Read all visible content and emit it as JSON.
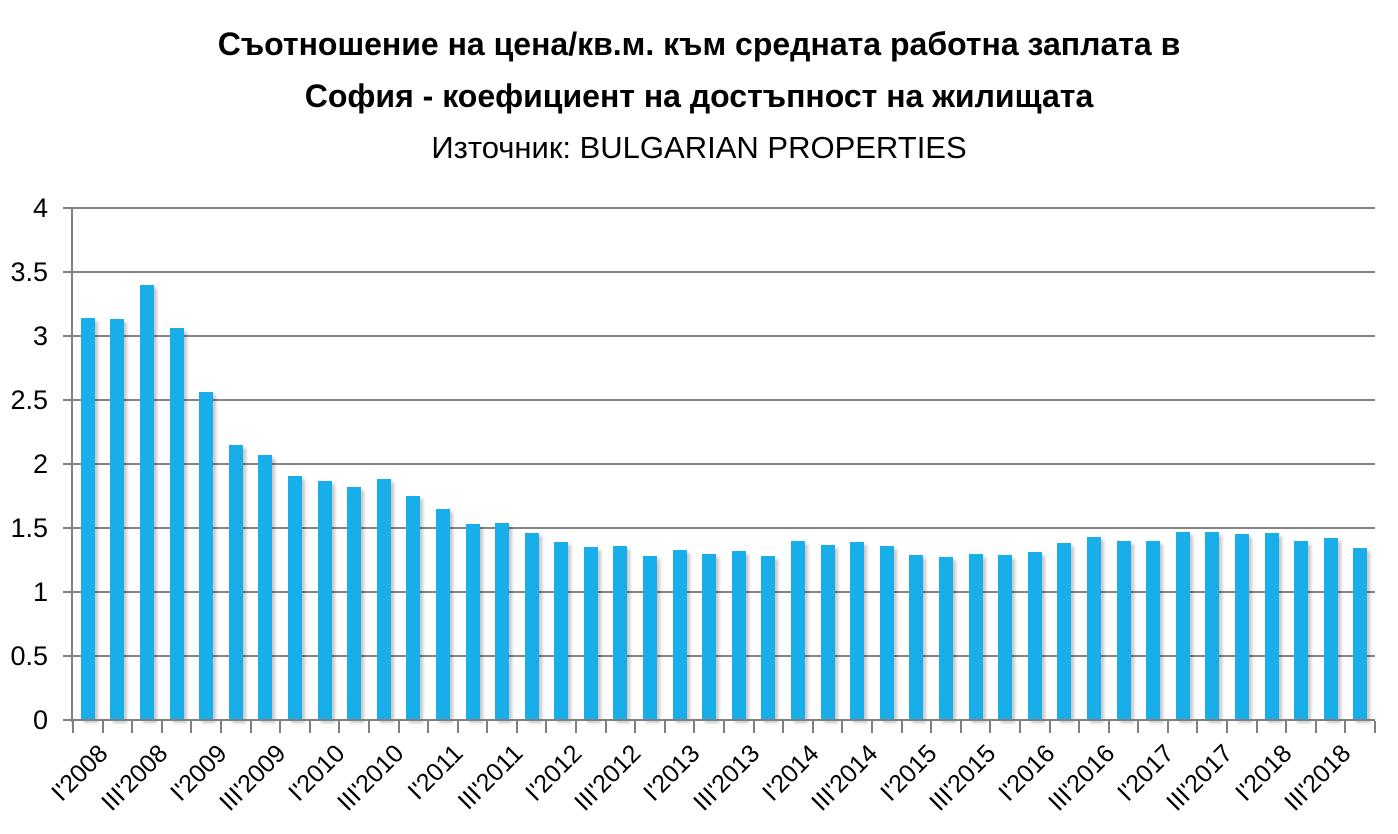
{
  "title": {
    "line1": "Съотношение на цена/кв.м. към средната работна заплата в",
    "line2": "София - коефициент на достъпност на жилищата",
    "source": "Източник: BULGARIAN PROPERTIES"
  },
  "colors": {
    "bar": "#18AEE9",
    "gridline": "#858585",
    "axis": "#7F7F7F",
    "text": "#000000",
    "background": "#FFFFFF"
  },
  "chart_data": {
    "type": "bar",
    "title": "Съотношение на цена/кв.м. към средната работна заплата в София - коефициент на достъпност на жилищата",
    "subtitle": "Източник: BULGARIAN PROPERTIES",
    "xlabel": "",
    "ylabel": "",
    "ylim": [
      0,
      4
    ],
    "ytick_step": 0.5,
    "ytick_labels": [
      "4",
      "3.5",
      "3",
      "2.5",
      "2",
      "1.5",
      "1",
      "0.5",
      "0"
    ],
    "grid": "horizontal",
    "legend": "none",
    "xtick_shown_every": 2,
    "xtick_labels": [
      "I'2008",
      "III'2008",
      "I'2009",
      "III'2009",
      "I'2010",
      "III'2010",
      "I'2011",
      "III'2011",
      "I'2012",
      "III'2012",
      "I'2013",
      "III'2013",
      "I'2014",
      "III'2014",
      "I'2015",
      "III'2015",
      "I'2016",
      "III'2016",
      "I'2017",
      "III'2017",
      "I'2018",
      "III'2018"
    ],
    "categories": [
      "I'2008",
      "II'2008",
      "III'2008",
      "IV'2008",
      "I'2009",
      "II'2009",
      "III'2009",
      "IV'2009",
      "I'2010",
      "II'2010",
      "III'2010",
      "IV'2010",
      "I'2011",
      "II'2011",
      "III'2011",
      "IV'2011",
      "I'2012",
      "II'2012",
      "III'2012",
      "IV'2012",
      "I'2013",
      "II'2013",
      "III'2013",
      "IV'2013",
      "I'2014",
      "II'2014",
      "III'2014",
      "IV'2014",
      "I'2015",
      "II'2015",
      "III'2015",
      "IV'2015",
      "I'2016",
      "II'2016",
      "III'2016",
      "IV'2016",
      "I'2017",
      "II'2017",
      "III'2017",
      "IV'2017",
      "I'2018",
      "II'2018",
      "III'2018",
      "IV'2018"
    ],
    "values": [
      3.14,
      3.13,
      3.4,
      3.06,
      2.56,
      2.15,
      2.07,
      1.91,
      1.87,
      1.82,
      1.88,
      1.75,
      1.65,
      1.53,
      1.54,
      1.46,
      1.39,
      1.35,
      1.36,
      1.28,
      1.33,
      1.3,
      1.32,
      1.28,
      1.4,
      1.37,
      1.39,
      1.36,
      1.29,
      1.27,
      1.3,
      1.29,
      1.31,
      1.38,
      1.43,
      1.4,
      1.4,
      1.47,
      1.47,
      1.45,
      1.46,
      1.4,
      1.42,
      1.34
    ]
  }
}
